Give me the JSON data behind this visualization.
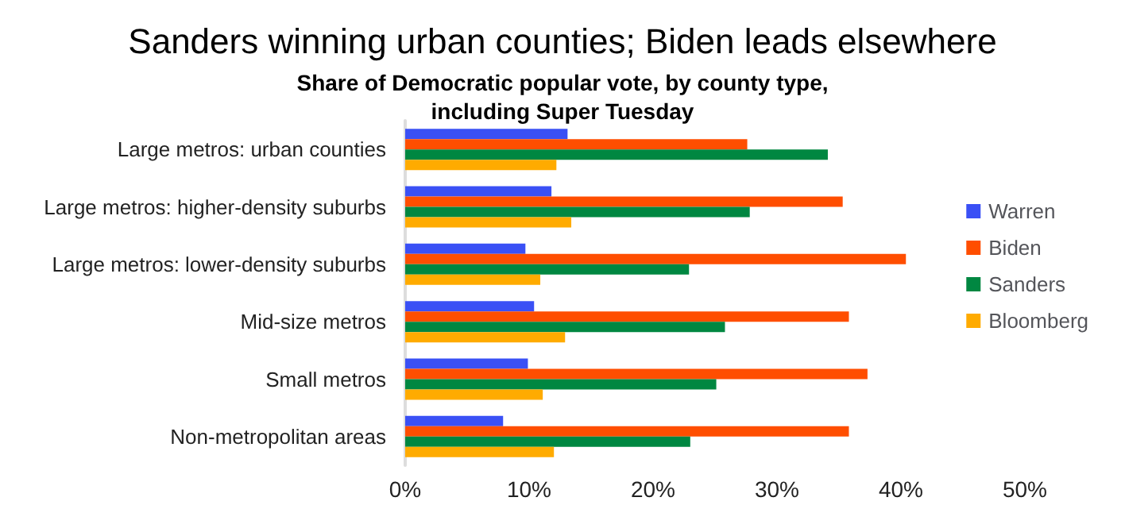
{
  "chart_data": {
    "type": "bar",
    "orientation": "horizontal",
    "title": "Sanders winning urban counties; Biden leads elsewhere",
    "subtitle": "Share of Democratic popular vote, by county type,\nincluding Super Tuesday",
    "categories": [
      "Large metros: urban counties",
      "Large metros: higher-density suburbs",
      "Large metros: lower-density suburbs",
      "Mid-size metros",
      "Small metros",
      "Non-metropolitan areas"
    ],
    "series": [
      {
        "name": "Warren",
        "color": "#3a50f5",
        "values": [
          13.1,
          11.8,
          9.7,
          10.4,
          9.9,
          7.9
        ]
      },
      {
        "name": "Biden",
        "color": "#ff4e00",
        "values": [
          27.6,
          35.3,
          40.4,
          35.8,
          37.3,
          35.8
        ]
      },
      {
        "name": "Sanders",
        "color": "#008741",
        "values": [
          34.1,
          27.8,
          22.9,
          25.8,
          25.1,
          23.0
        ]
      },
      {
        "name": "Bloomberg",
        "color": "#ffab00",
        "values": [
          12.2,
          13.4,
          10.9,
          12.9,
          11.1,
          12.0
        ]
      }
    ],
    "xlim": [
      0,
      50
    ],
    "xticks": [
      {
        "value": 0,
        "label": "0%"
      },
      {
        "value": 10,
        "label": "10%"
      },
      {
        "value": 20,
        "label": "20%"
      },
      {
        "value": 30,
        "label": "30%"
      },
      {
        "value": 40,
        "label": "40%"
      },
      {
        "value": 50,
        "label": "50%"
      }
    ],
    "grid": false,
    "legend": "right"
  }
}
